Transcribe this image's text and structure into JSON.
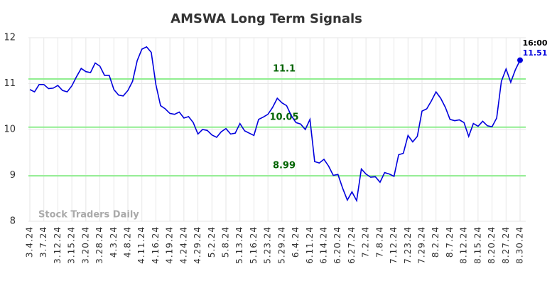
{
  "chart_data": {
    "type": "line",
    "title": "AMSWA Long Term Signals",
    "categories": [
      "3.4.24",
      null,
      null,
      "3.7.24",
      null,
      null,
      "3.12.24",
      null,
      null,
      "3.15.24",
      null,
      null,
      "3.20.24",
      null,
      null,
      "3.28.24",
      null,
      null,
      "4.3.24",
      null,
      null,
      "4.8.24",
      null,
      null,
      "4.11.24",
      null,
      null,
      "4.16.24",
      null,
      null,
      "4.19.24",
      null,
      null,
      "4.24.24",
      null,
      null,
      "4.29.24",
      null,
      null,
      "5.2.24",
      null,
      null,
      "5.8.24",
      null,
      null,
      "5.13.24",
      null,
      null,
      "5.16.24",
      null,
      null,
      "5.23.24",
      null,
      null,
      "5.29.24",
      null,
      null,
      "6.4.24",
      null,
      null,
      "6.11.24",
      null,
      null,
      "6.14.24",
      null,
      null,
      "6.20.24",
      null,
      null,
      "6.27.24",
      null,
      null,
      "7.2.24",
      null,
      null,
      "7.8.24",
      null,
      null,
      "7.12.24",
      null,
      null,
      "7.23.24",
      null,
      null,
      "7.29.24",
      null,
      null,
      "8.2.24",
      null,
      null,
      "8.7.24",
      null,
      null,
      "8.12.24",
      null,
      null,
      "8.15.24",
      null,
      null,
      "8.20.24",
      null,
      null,
      "8.27.24",
      null,
      null,
      "8.30.24"
    ],
    "values": [
      10.87,
      10.82,
      10.98,
      10.98,
      10.89,
      10.9,
      10.96,
      10.85,
      10.82,
      10.95,
      11.15,
      11.33,
      11.26,
      11.24,
      11.45,
      11.38,
      11.18,
      11.18,
      10.87,
      10.75,
      10.73,
      10.85,
      11.05,
      11.5,
      11.75,
      11.8,
      11.68,
      10.98,
      10.52,
      10.45,
      10.35,
      10.33,
      10.38,
      10.25,
      10.28,
      10.15,
      9.9,
      10.0,
      9.98,
      9.88,
      9.83,
      9.95,
      10.02,
      9.9,
      9.92,
      10.13,
      9.97,
      9.92,
      9.87,
      10.22,
      10.27,
      10.33,
      10.48,
      10.68,
      10.58,
      10.52,
      10.3,
      10.15,
      10.12,
      10.0,
      10.22,
      9.3,
      9.27,
      9.35,
      9.2,
      9.0,
      9.02,
      8.72,
      8.46,
      8.64,
      8.45,
      9.14,
      9.03,
      8.96,
      8.97,
      8.85,
      9.06,
      9.03,
      8.98,
      9.45,
      9.48,
      9.87,
      9.73,
      9.85,
      10.4,
      10.45,
      10.62,
      10.82,
      10.68,
      10.48,
      10.22,
      10.19,
      10.21,
      10.15,
      9.85,
      10.13,
      10.07,
      10.18,
      10.08,
      10.06,
      10.25,
      11.05,
      11.32,
      11.03,
      11.3,
      11.51
    ],
    "color": "#0000dd",
    "ylim": [
      8,
      12
    ],
    "yticks": [
      8,
      9,
      10,
      11,
      12
    ],
    "grid": true,
    "hlines": [
      11.1,
      10.05,
      8.99
    ],
    "hline_color": "#90ee90",
    "hline_label_color": "#006400",
    "last_time": "16:00",
    "watermark": "Stock Traders Daily"
  }
}
